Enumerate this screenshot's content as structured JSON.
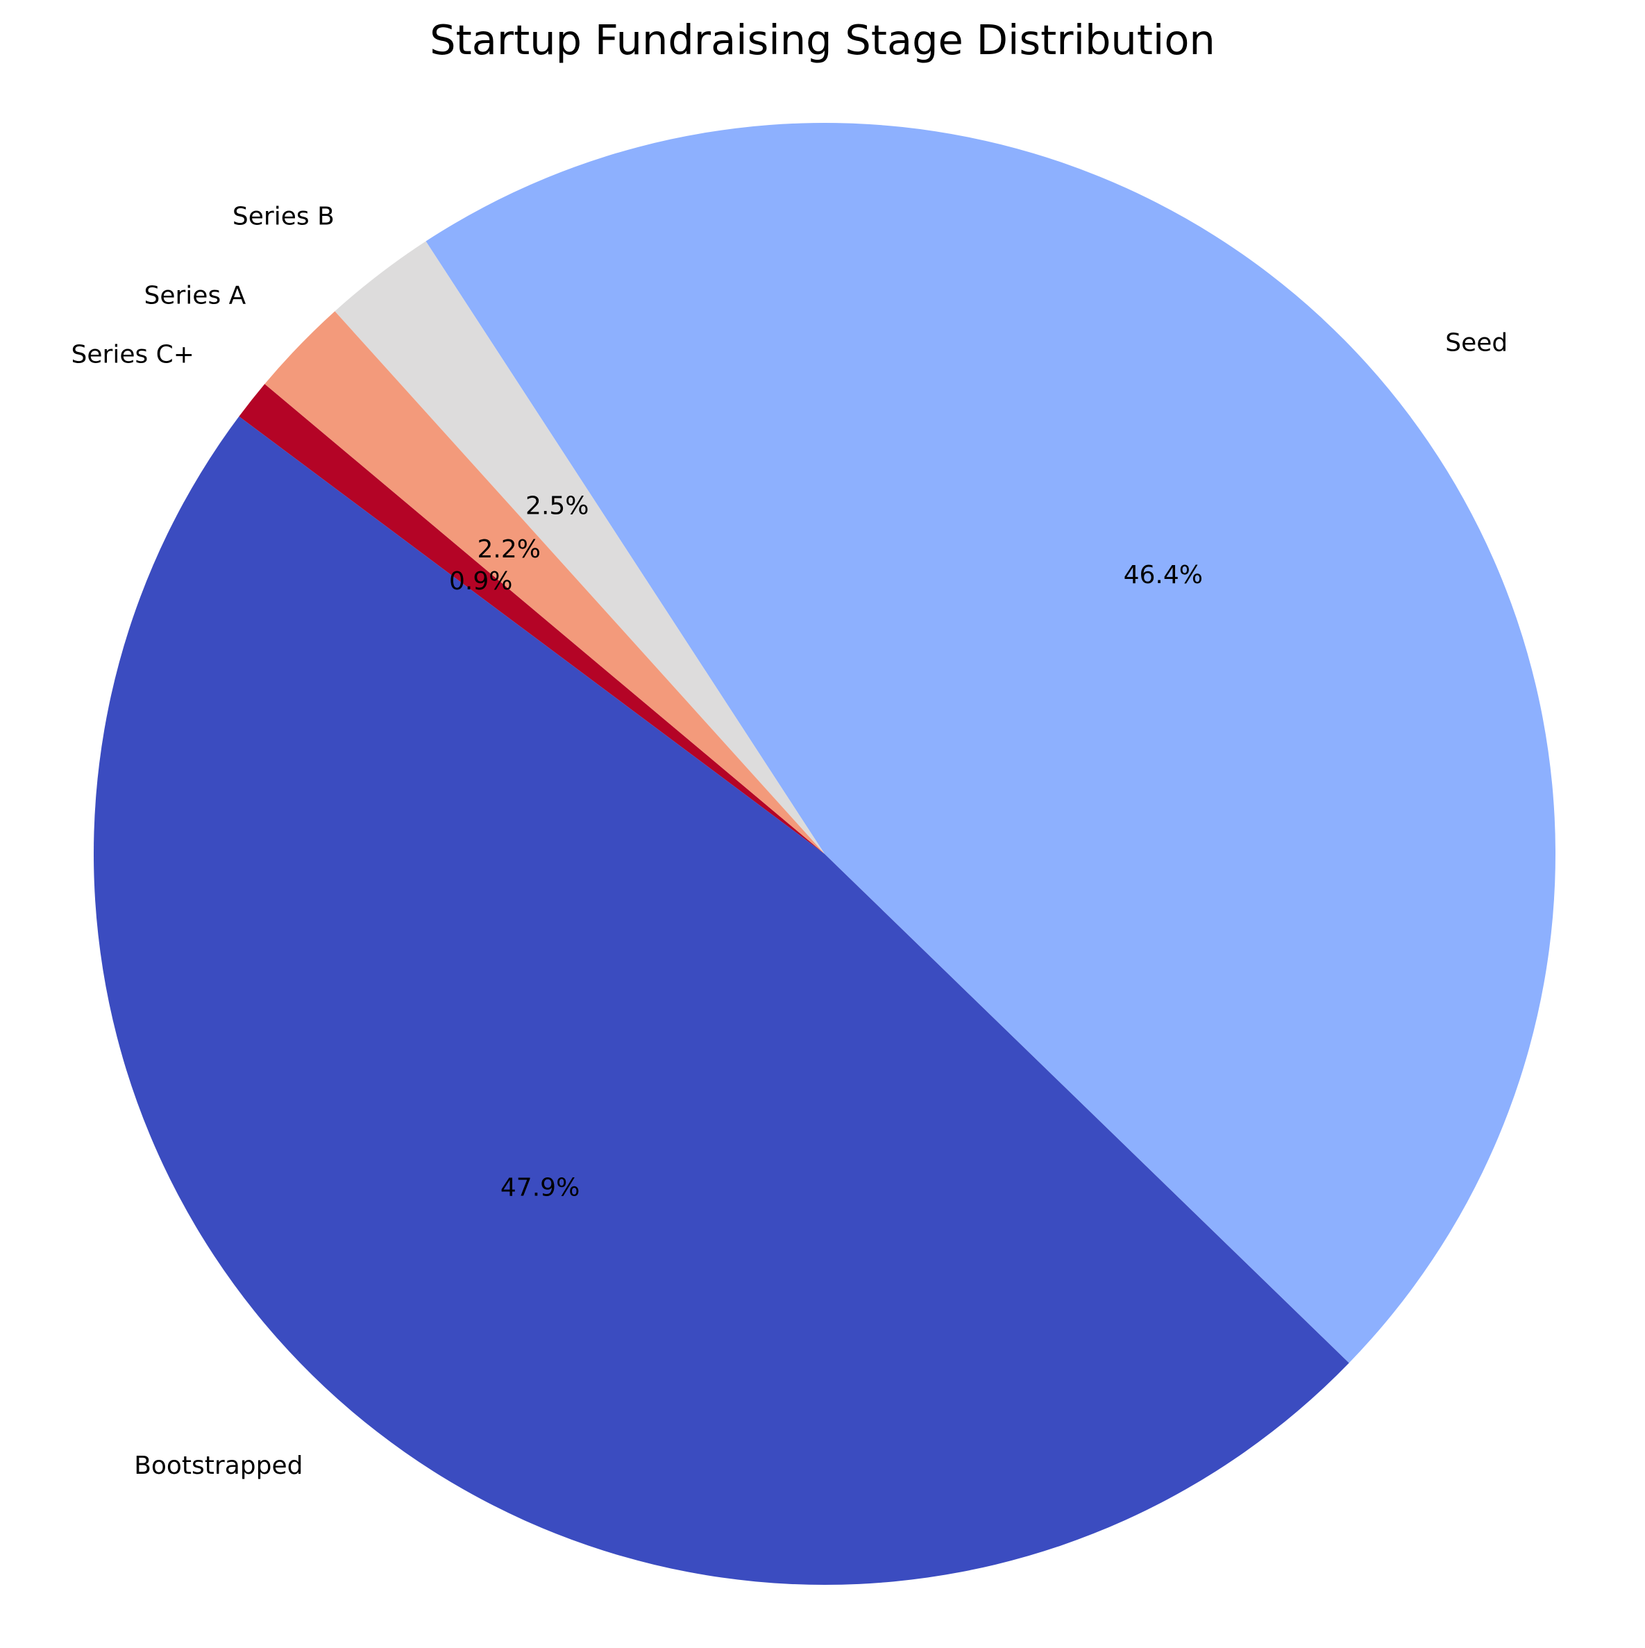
{
  "chart_data": {
    "type": "pie",
    "title": "Startup Fundraising Stage Distribution",
    "start_angle_deg": 140,
    "direction": "counterclockwise",
    "slices": [
      {
        "label": "Series C+",
        "percent": 0.9,
        "percent_label": "0.9%",
        "color": "#b40426"
      },
      {
        "label": "Bootstrapped",
        "percent": 47.9,
        "percent_label": "47.9%",
        "color": "#3b4cc0"
      },
      {
        "label": "Seed",
        "percent": 46.4,
        "percent_label": "46.4%",
        "color": "#8db0fe"
      },
      {
        "label": "Series B",
        "percent": 2.5,
        "percent_label": "2.5%",
        "color": "#dddcdc"
      },
      {
        "label": "Series A",
        "percent": 2.2,
        "percent_label": "2.2%",
        "color": "#f39a7b"
      }
    ]
  }
}
